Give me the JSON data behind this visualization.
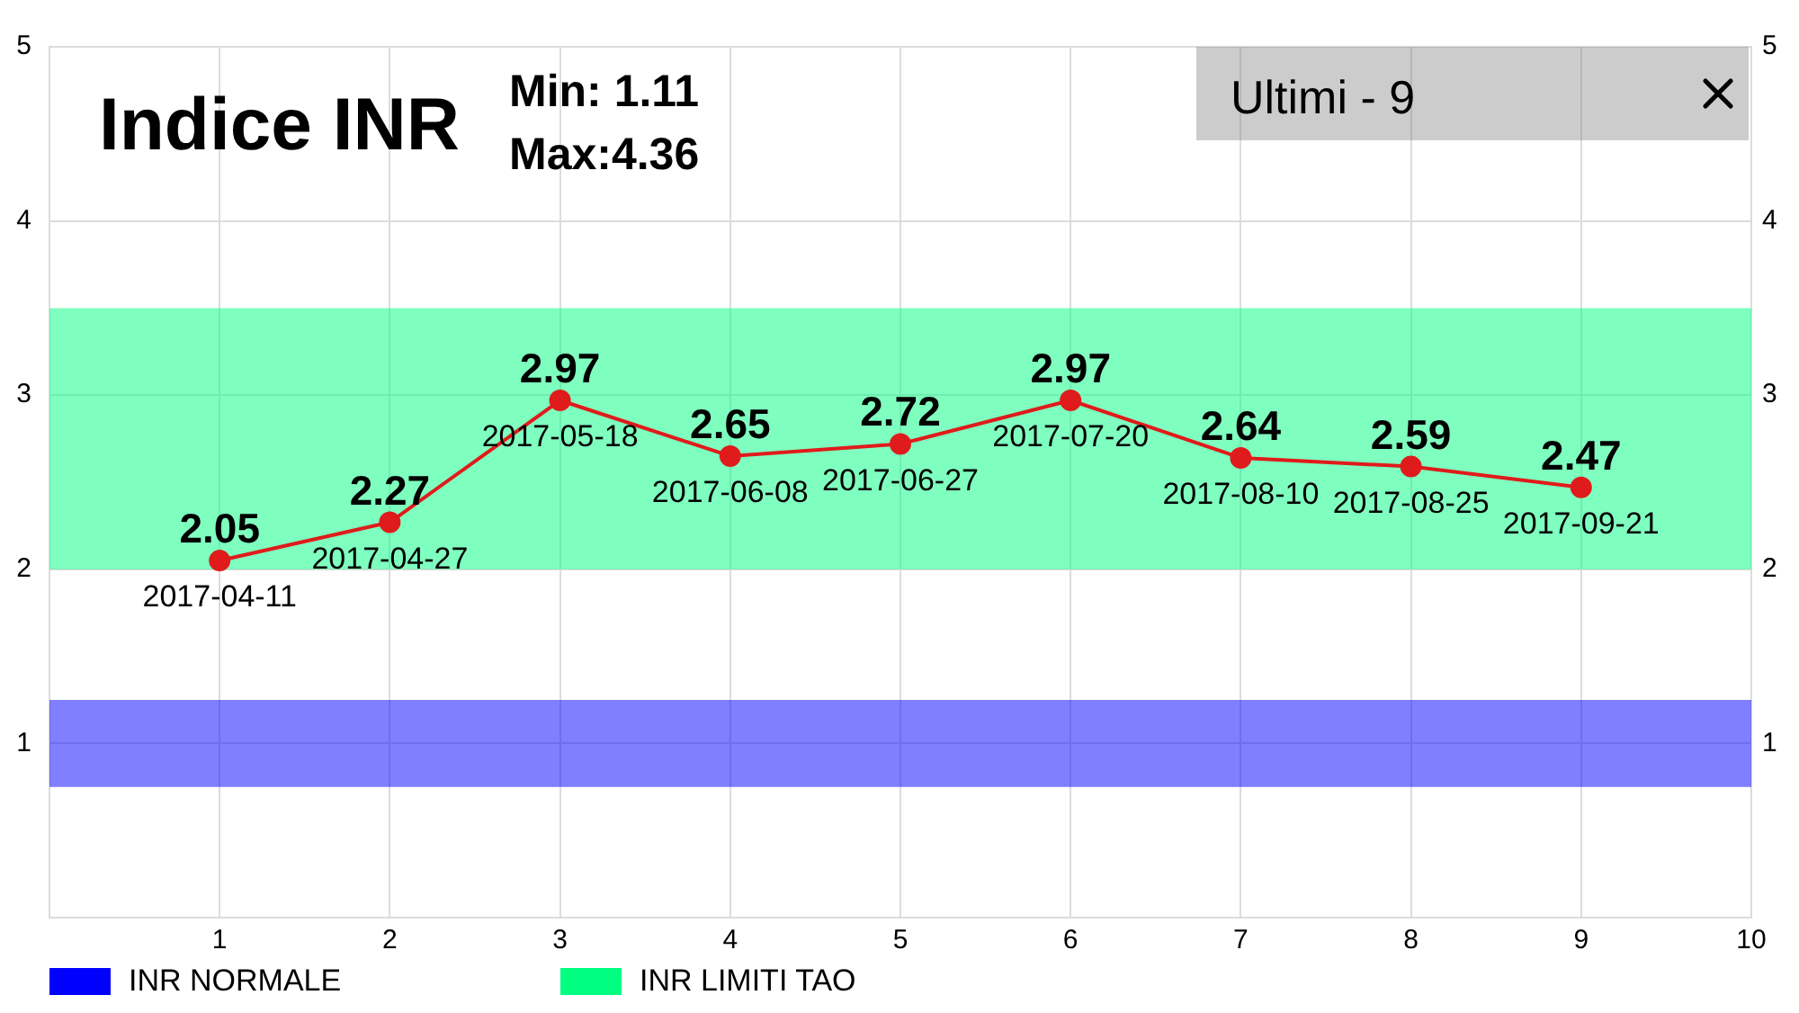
{
  "chart_data": {
    "type": "line",
    "title": "Indice INR",
    "annotations": [
      "Min: 1.11",
      "Max:4.36",
      "Ultimi - 9",
      {
        "text": "2017-04-11",
        "x": 1,
        "y": 2.05
      },
      {
        "text": "2017-04-27",
        "x": 2,
        "y": 2.27
      },
      {
        "text": "2017-05-18",
        "x": 3,
        "y": 2.97
      },
      {
        "text": "2017-06-08",
        "x": 4,
        "y": 2.65
      },
      {
        "text": "2017-06-27",
        "x": 5,
        "y": 2.72
      },
      {
        "text": "2017-07-20",
        "x": 6,
        "y": 2.97
      },
      {
        "text": "2017-08-10",
        "x": 7,
        "y": 2.64
      },
      {
        "text": "2017-08-25",
        "x": 8,
        "y": 2.59
      },
      {
        "text": "2017-09-21",
        "x": 9,
        "y": 2.47
      }
    ],
    "x": [
      1,
      2,
      3,
      4,
      5,
      6,
      7,
      8,
      9
    ],
    "values": [
      2.05,
      2.27,
      2.97,
      2.65,
      2.72,
      2.97,
      2.64,
      2.59,
      2.47
    ],
    "color": "#e01b1b",
    "marker": "circle",
    "line_style": "solid",
    "xlim": [
      0,
      10
    ],
    "xticks": [
      1,
      2,
      3,
      4,
      5,
      6,
      7,
      8,
      9,
      10
    ],
    "ylim": [
      0,
      5
    ],
    "yticks": [
      1,
      2,
      3,
      4,
      5
    ],
    "y2lim": [
      0,
      5
    ],
    "y2ticks": [
      1,
      2,
      3,
      4,
      5
    ],
    "bands": [
      {
        "axis": "y",
        "from": 0.75,
        "to": 1.25,
        "label": "INR NORMALE",
        "color": "#0000ff"
      },
      {
        "axis": "y",
        "from": 2,
        "to": 3.5,
        "label": "INR LIMITI TAO",
        "color": "#00ff80"
      }
    ],
    "grid": true,
    "legend": "bottom left",
    "data_labels": true
  }
}
